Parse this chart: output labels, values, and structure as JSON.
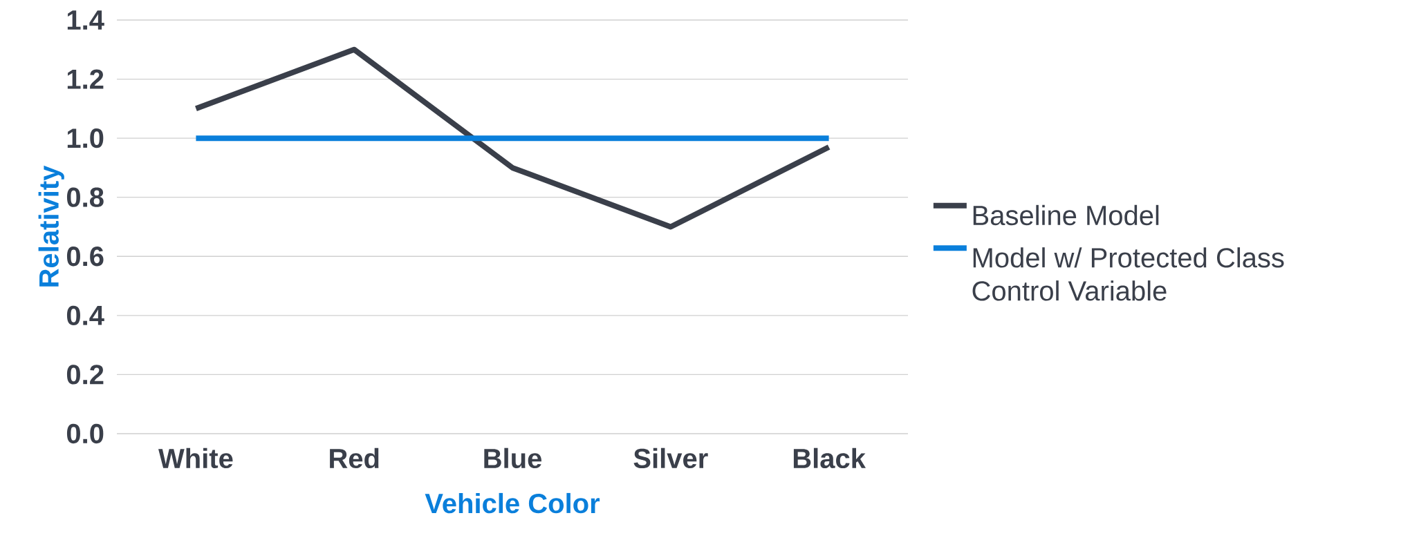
{
  "chart_data": {
    "type": "line",
    "xlabel": "Vehicle Color",
    "ylabel": "Relativity",
    "categories": [
      "White",
      "Red",
      "Blue",
      "Silver",
      "Black"
    ],
    "series": [
      {
        "name": "Baseline Model",
        "color": "#3a3f4a",
        "values": [
          1.1,
          1.3,
          0.9,
          0.7,
          0.97
        ]
      },
      {
        "name": "Model w/ Protected Class Control Variable",
        "color": "#0a7fdb",
        "values": [
          1.0,
          1.0,
          1.0,
          1.0,
          1.0
        ]
      }
    ],
    "ylim": [
      0,
      1.4
    ],
    "yticks": [
      {
        "value": 0,
        "label": "0.0"
      },
      0.2,
      0.4,
      0.6,
      0.8,
      {
        "value": 1,
        "label": "1.0"
      },
      1.2,
      1.4
    ],
    "grid": "y",
    "legend": "right"
  }
}
